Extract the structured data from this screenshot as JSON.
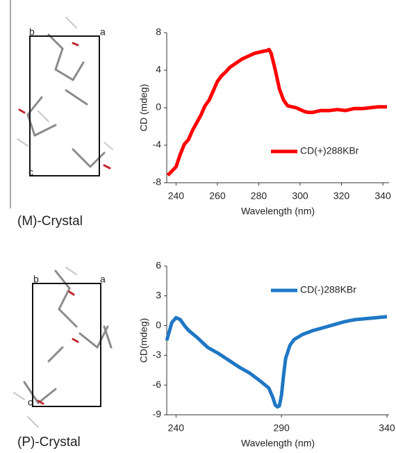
{
  "crystals": [
    {
      "label": "(M)-Crystal",
      "axis_labels": [
        "b",
        "a",
        "c"
      ]
    },
    {
      "label": "(P)-Crystal",
      "axis_labels": [
        "b",
        "a",
        "c"
      ]
    }
  ],
  "chart_data": [
    {
      "type": "line",
      "x_label": "Wavelength (nm)",
      "y_label": "CD (mdeg)",
      "xlim": [
        235.5,
        343
      ],
      "xticks": [
        240,
        260,
        280,
        300,
        320,
        340
      ],
      "ylim": [
        -8,
        8
      ],
      "yticks": [
        -8,
        -4,
        0,
        4,
        8
      ],
      "legend_loc": "lower right",
      "x": [
        236,
        240,
        242,
        244,
        246,
        248,
        250,
        252,
        254,
        256,
        258,
        260,
        262,
        264,
        266,
        268,
        270,
        272,
        274,
        276,
        278,
        280,
        282,
        284,
        285,
        286,
        288,
        290,
        292,
        294,
        296,
        298,
        300,
        302,
        304,
        306,
        308,
        310,
        314,
        318,
        322,
        326,
        330,
        334,
        338,
        342
      ],
      "series": [
        {
          "name": "CD(+)288KBr",
          "color": "#ff0000",
          "values": [
            -7.2,
            -6.3,
            -5,
            -3.9,
            -3.4,
            -2.4,
            -1.6,
            -0.8,
            0.2,
            0.8,
            1.8,
            2.8,
            3.4,
            3.8,
            4.3,
            4.6,
            4.9,
            5.2,
            5.4,
            5.6,
            5.8,
            5.9,
            6.0,
            6.1,
            6.2,
            5.8,
            4.0,
            2.0,
            0.8,
            0.2,
            0.1,
            0,
            -0.2,
            -0.4,
            -0.5,
            -0.5,
            -0.4,
            -0.3,
            -0.3,
            -0.2,
            -0.3,
            -0.1,
            -0.1,
            0,
            0.1,
            0.1
          ]
        }
      ]
    },
    {
      "type": "line",
      "x_label": "Wavelength (nm)",
      "y_label": "CD(mdeg)",
      "xlim": [
        235.6,
        341
      ],
      "xticks": [
        240,
        290,
        340
      ],
      "ylim": [
        -9,
        6
      ],
      "yticks": [
        -9,
        -6,
        -3,
        0,
        3,
        6
      ],
      "legend_loc": "upper right",
      "x": [
        235.6,
        238,
        240,
        242,
        244,
        246,
        250,
        255,
        260,
        265,
        270,
        275,
        280,
        284,
        286,
        287,
        288,
        289,
        290,
        291,
        292,
        294,
        296,
        300,
        305,
        310,
        315,
        320,
        325,
        330,
        335,
        340
      ],
      "series": [
        {
          "name": "CD(-)288KBr",
          "color": "#1f77c4",
          "values": [
            -1.5,
            0.3,
            0.8,
            0.6,
            0,
            -0.5,
            -1.2,
            -2.2,
            -2.8,
            -3.5,
            -4.2,
            -4.8,
            -5.6,
            -6.3,
            -7.3,
            -8.0,
            -8.2,
            -8.1,
            -7,
            -5,
            -3.3,
            -2.0,
            -1.4,
            -0.9,
            -0.5,
            -0.2,
            0.1,
            0.4,
            0.6,
            0.7,
            0.8,
            0.9
          ]
        }
      ]
    }
  ]
}
